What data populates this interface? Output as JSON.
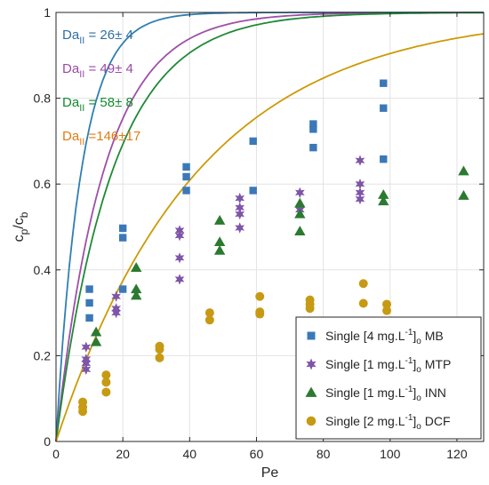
{
  "chart_data": {
    "type": "scatter",
    "xlabel": "Pe",
    "ylabel": {
      "base": "c",
      "sub1": "p",
      "slash": "/c",
      "sub2": "b"
    },
    "xlim": [
      0,
      128
    ],
    "ylim": [
      0,
      1
    ],
    "xticks": [
      0,
      20,
      40,
      60,
      80,
      100,
      120
    ],
    "yticks": [
      0,
      0.2,
      0.4,
      0.6,
      0.8,
      1
    ],
    "ytick_labels": [
      "0",
      "0.2",
      "0.4",
      "0.6",
      "0.8",
      "1"
    ],
    "grid": true,
    "legend_position": "bottom-right",
    "annotations": [
      {
        "prefix": "Da",
        "sub": "II",
        "value": " = 26± 4",
        "color": "#2f6fa3"
      },
      {
        "prefix": "Da",
        "sub": "II",
        "value": " = 49± 4",
        "color": "#9b4aa6"
      },
      {
        "prefix": "Da",
        "sub": "II",
        "value": " = 58± 8",
        "color": "#138a2e"
      },
      {
        "prefix": "Da",
        "sub": "II",
        "value": " =146±17",
        "color": "#e07d12"
      }
    ],
    "series": [
      {
        "name": {
          "pre": "Single [4 mg.L",
          "sup": "-1",
          "post": "]",
          "sub": "o",
          "tail": " MB"
        },
        "marker": "square",
        "color": "#3b78b8",
        "curve_color": "#2f7fb3",
        "da": 26,
        "x": [
          10,
          10,
          10,
          20,
          20,
          20,
          39,
          39,
          39,
          59,
          59,
          77,
          77,
          77,
          98,
          98,
          98
        ],
        "y": [
          0.355,
          0.323,
          0.288,
          0.497,
          0.475,
          0.355,
          0.64,
          0.617,
          0.585,
          0.7,
          0.585,
          0.74,
          0.728,
          0.685,
          0.835,
          0.777,
          0.658
        ]
      },
      {
        "name": {
          "pre": "Single [1 mg.L",
          "sup": "-1",
          "post": "]",
          "sub": "o",
          "tail": " MTP"
        },
        "marker": "star",
        "color": "#7e55a8",
        "curve_color": "#9e4fa8",
        "da": 49,
        "x": [
          9,
          9,
          9,
          9,
          18,
          18,
          18,
          37,
          37,
          37,
          37,
          55,
          55,
          55,
          55,
          73,
          73,
          91,
          91,
          91,
          91
        ],
        "y": [
          0.22,
          0.192,
          0.182,
          0.168,
          0.338,
          0.31,
          0.3,
          0.492,
          0.48,
          0.428,
          0.378,
          0.567,
          0.545,
          0.53,
          0.498,
          0.58,
          0.54,
          0.655,
          0.6,
          0.58,
          0.565
        ]
      },
      {
        "name": {
          "pre": "Single [1 mg.L",
          "sup": "-1",
          "post": "]",
          "sub": "o",
          "tail": " INN"
        },
        "marker": "triangle",
        "color": "#2a7a30",
        "curve_color": "#1f8a36",
        "da": 58,
        "x": [
          12,
          12,
          24,
          24,
          24,
          49,
          49,
          49,
          73,
          73,
          73,
          98,
          98,
          122,
          122
        ],
        "y": [
          0.255,
          0.232,
          0.405,
          0.355,
          0.34,
          0.515,
          0.465,
          0.445,
          0.555,
          0.53,
          0.49,
          0.575,
          0.56,
          0.63,
          0.573
        ]
      },
      {
        "name": {
          "pre": "Single [2 mg.L",
          "sup": "-1",
          "post": "]",
          "sub": "o",
          "tail": " DCF"
        },
        "marker": "circle",
        "color": "#c79a14",
        "curve_color": "#cc9a06",
        "da": 146,
        "x": [
          8,
          8,
          8,
          15,
          15,
          15,
          31,
          31,
          31,
          46,
          46,
          61,
          61,
          61,
          76,
          76,
          76,
          92,
          92,
          99,
          99
        ],
        "y": [
          0.092,
          0.08,
          0.07,
          0.155,
          0.138,
          0.115,
          0.222,
          0.215,
          0.195,
          0.3,
          0.283,
          0.338,
          0.302,
          0.297,
          0.33,
          0.32,
          0.31,
          0.368,
          0.322,
          0.32,
          0.305
        ]
      }
    ]
  }
}
